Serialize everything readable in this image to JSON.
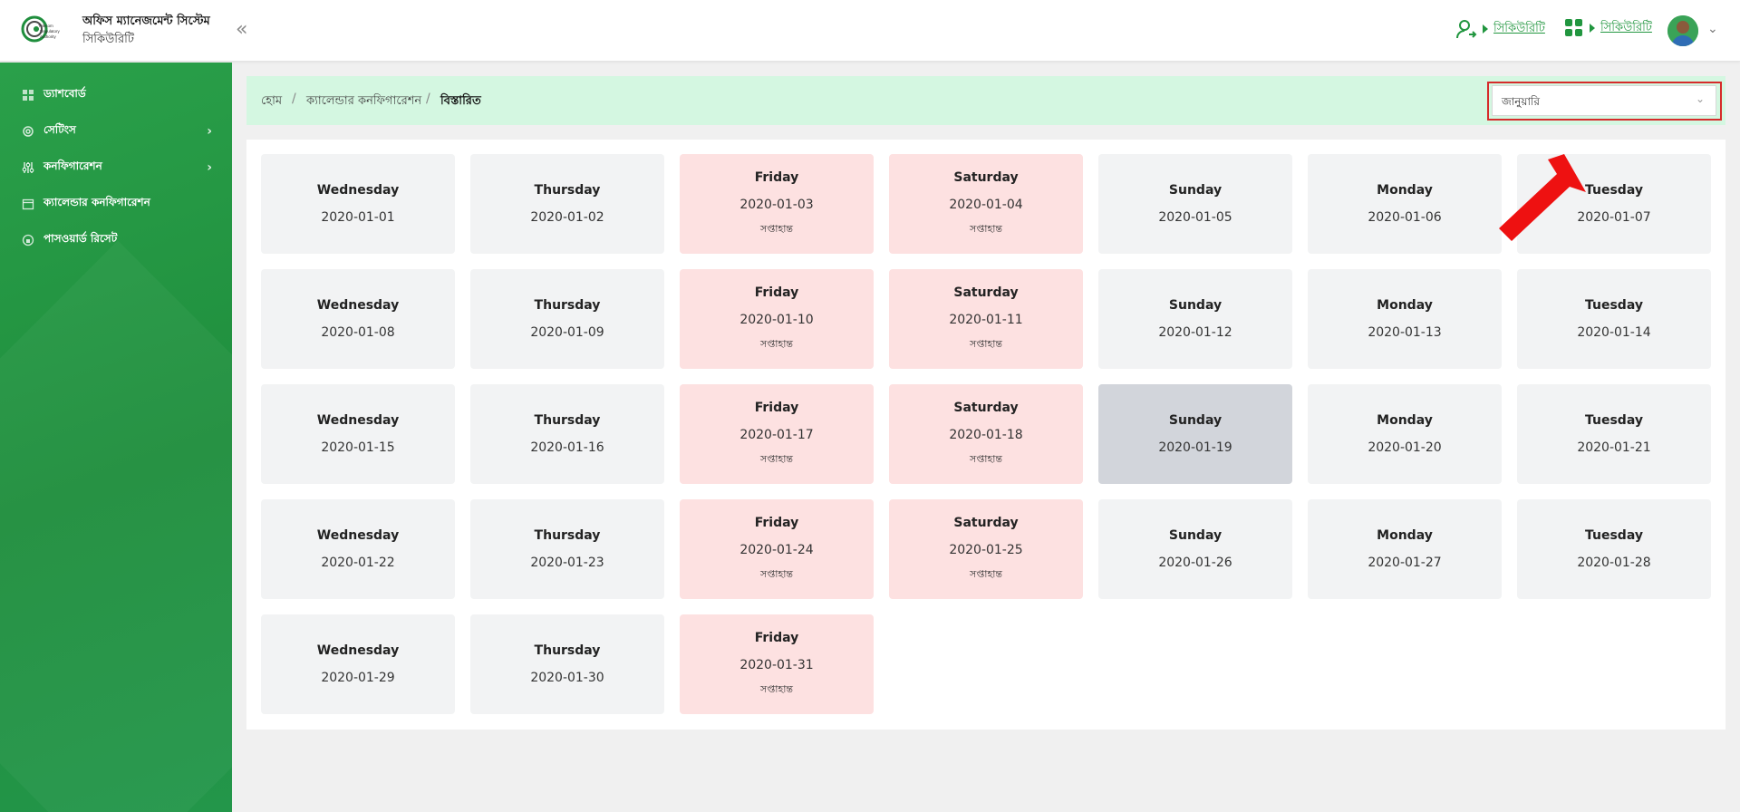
{
  "header": {
    "title": "অফিস ম্যানেজমেন্ট সিস্টেম",
    "subtitle": "সিকিউরিটি",
    "link1": "সিকিউরিটি",
    "link2": "সিকিউরিটি",
    "logo_text": "Bangladesh Telecommunication Regulatory Authority"
  },
  "sidebar": {
    "items": [
      {
        "label": "ড্যাশবোর্ড",
        "icon": "grid-icon",
        "chevron": false
      },
      {
        "label": "সেটিংস",
        "icon": "gear-icon",
        "chevron": true
      },
      {
        "label": "কনফিগারেশন",
        "icon": "sliders-icon",
        "chevron": true
      },
      {
        "label": "ক্যালেন্ডার কনফিগারেশন",
        "icon": "calendar-icon",
        "chevron": false
      },
      {
        "label": "পাসওয়ার্ড রিসেট",
        "icon": "lock-icon",
        "chevron": false
      }
    ]
  },
  "breadcrumb": {
    "home": "হোম",
    "parent": "ক্যালেন্ডার কনফিগারেশন",
    "current": "বিস্তারিত"
  },
  "month_select": {
    "value": "জানুয়ারি"
  },
  "calendar": {
    "weekend_label": "সপ্তাহান্ত",
    "selected_date": "2020-01-19",
    "days": [
      {
        "day": "Wednesday",
        "date": "2020-01-01",
        "weekend": false
      },
      {
        "day": "Thursday",
        "date": "2020-01-02",
        "weekend": false
      },
      {
        "day": "Friday",
        "date": "2020-01-03",
        "weekend": true
      },
      {
        "day": "Saturday",
        "date": "2020-01-04",
        "weekend": true
      },
      {
        "day": "Sunday",
        "date": "2020-01-05",
        "weekend": false
      },
      {
        "day": "Monday",
        "date": "2020-01-06",
        "weekend": false
      },
      {
        "day": "Tuesday",
        "date": "2020-01-07",
        "weekend": false
      },
      {
        "day": "Wednesday",
        "date": "2020-01-08",
        "weekend": false
      },
      {
        "day": "Thursday",
        "date": "2020-01-09",
        "weekend": false
      },
      {
        "day": "Friday",
        "date": "2020-01-10",
        "weekend": true
      },
      {
        "day": "Saturday",
        "date": "2020-01-11",
        "weekend": true
      },
      {
        "day": "Sunday",
        "date": "2020-01-12",
        "weekend": false
      },
      {
        "day": "Monday",
        "date": "2020-01-13",
        "weekend": false
      },
      {
        "day": "Tuesday",
        "date": "2020-01-14",
        "weekend": false
      },
      {
        "day": "Wednesday",
        "date": "2020-01-15",
        "weekend": false
      },
      {
        "day": "Thursday",
        "date": "2020-01-16",
        "weekend": false
      },
      {
        "day": "Friday",
        "date": "2020-01-17",
        "weekend": true
      },
      {
        "day": "Saturday",
        "date": "2020-01-18",
        "weekend": true
      },
      {
        "day": "Sunday",
        "date": "2020-01-19",
        "weekend": false
      },
      {
        "day": "Monday",
        "date": "2020-01-20",
        "weekend": false
      },
      {
        "day": "Tuesday",
        "date": "2020-01-21",
        "weekend": false
      },
      {
        "day": "Wednesday",
        "date": "2020-01-22",
        "weekend": false
      },
      {
        "day": "Thursday",
        "date": "2020-01-23",
        "weekend": false
      },
      {
        "day": "Friday",
        "date": "2020-01-24",
        "weekend": true
      },
      {
        "day": "Saturday",
        "date": "2020-01-25",
        "weekend": true
      },
      {
        "day": "Sunday",
        "date": "2020-01-26",
        "weekend": false
      },
      {
        "day": "Monday",
        "date": "2020-01-27",
        "weekend": false
      },
      {
        "day": "Tuesday",
        "date": "2020-01-28",
        "weekend": false
      },
      {
        "day": "Wednesday",
        "date": "2020-01-29",
        "weekend": false
      },
      {
        "day": "Thursday",
        "date": "2020-01-30",
        "weekend": false
      },
      {
        "day": "Friday",
        "date": "2020-01-31",
        "weekend": true
      }
    ]
  },
  "colors": {
    "brand_green": "#21963f",
    "breadcrumb_bg": "#d4f7e1",
    "weekend_bg": "#fde1e1",
    "day_bg": "#f2f3f4",
    "selected_bg": "#d2d5db",
    "highlight_red": "#d62b2b"
  }
}
